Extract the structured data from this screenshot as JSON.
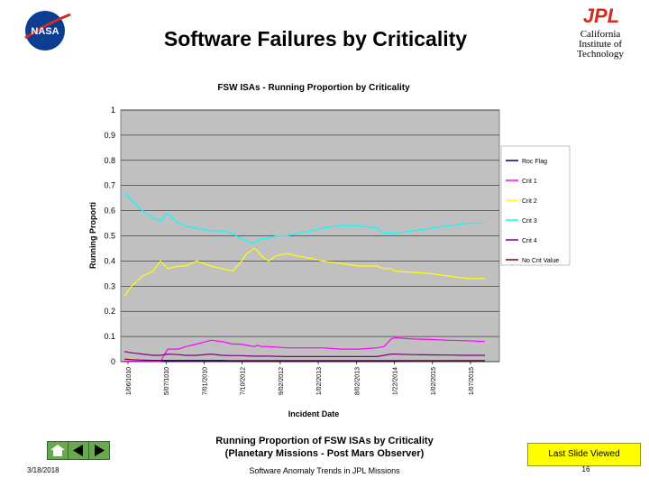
{
  "header": {
    "title": "Software Failures by Criticality",
    "org_line1": "California",
    "org_line2": "Institute of",
    "org_line3": "Technology",
    "jpl_logo_text": "JPL",
    "nasa_logo_text": "NASA"
  },
  "colors": {
    "plot_bg": "#c0c0c0",
    "roc_flag": "#000080",
    "crit1": "#ff00ff",
    "crit2": "#ffff00",
    "crit3": "#00ffff",
    "crit4": "#800080",
    "no_crit": "#800000",
    "nav_green": "#6aa84f",
    "last_slide_bg": "#ffff00"
  },
  "chart_data": {
    "type": "line",
    "title": "FSW ISAs - Running Proportion by Criticality",
    "xlabel": "Incident Date",
    "ylabel": "Running Proporti",
    "ylim": [
      0,
      1
    ],
    "yticks": [
      "0",
      "0.1",
      "0.2",
      "0.3",
      "0.4",
      "0.5",
      "0.6",
      "0.7",
      "0.8",
      "0.9",
      "1"
    ],
    "xticks": [
      "1/06/1010",
      "5/07/1010",
      "7/01/2010",
      "7/10/2012",
      "9/02/2012",
      "1/02/2013",
      "8/02/2013",
      "1/22/2014",
      "1/02/2015",
      "1/07/2015"
    ],
    "legend_position": "right",
    "legend": [
      "Roc Flag",
      "Crit 1",
      "Crit 2",
      "Crit 3",
      "Crit 4",
      "No Crit Value"
    ],
    "grid": true,
    "x": [
      0,
      0.02,
      0.05,
      0.08,
      0.1,
      0.12,
      0.15,
      0.17,
      0.2,
      0.24,
      0.27,
      0.3,
      0.32,
      0.34,
      0.36,
      0.37,
      0.38,
      0.4,
      0.42,
      0.45,
      0.48,
      0.52,
      0.55,
      0.6,
      0.65,
      0.7,
      0.72,
      0.74,
      0.75,
      0.8,
      0.85,
      0.9,
      0.95,
      1.0
    ],
    "series": [
      {
        "name": "Roc Flag",
        "color_key": "roc_flag",
        "values": [
          0.001,
          0.001,
          0.001,
          0.001,
          0.001,
          0.001,
          0.001,
          0.001,
          0.001,
          0.001,
          0.001,
          0.001,
          0.001,
          0.001,
          0.001,
          0.001,
          0.001,
          0.001,
          0.001,
          0.001,
          0.001,
          0.001,
          0.001,
          0.001,
          0.001,
          0.001,
          0.001,
          0.001,
          0.001,
          0.003,
          0.003,
          0.003,
          0.003,
          0.003
        ]
      },
      {
        "name": "Crit 1",
        "color_key": "crit1",
        "values": [
          0.0,
          0.0,
          0.0,
          0.0,
          0.0,
          0.05,
          0.05,
          0.06,
          0.07,
          0.085,
          0.08,
          0.07,
          0.07,
          0.065,
          0.06,
          0.065,
          0.06,
          0.06,
          0.058,
          0.055,
          0.055,
          0.055,
          0.055,
          0.05,
          0.05,
          0.055,
          0.06,
          0.09,
          0.095,
          0.09,
          0.088,
          0.085,
          0.083,
          0.08
        ]
      },
      {
        "name": "Crit 2",
        "color_key": "crit2",
        "values": [
          0.26,
          0.3,
          0.34,
          0.36,
          0.4,
          0.37,
          0.38,
          0.38,
          0.4,
          0.38,
          0.37,
          0.36,
          0.39,
          0.43,
          0.45,
          0.44,
          0.42,
          0.4,
          0.42,
          0.43,
          0.42,
          0.41,
          0.4,
          0.39,
          0.38,
          0.38,
          0.37,
          0.37,
          0.36,
          0.355,
          0.35,
          0.34,
          0.33,
          0.33
        ]
      },
      {
        "name": "Crit 3",
        "color_key": "crit3",
        "values": [
          0.67,
          0.64,
          0.6,
          0.57,
          0.56,
          0.59,
          0.55,
          0.54,
          0.53,
          0.52,
          0.52,
          0.51,
          0.49,
          0.48,
          0.47,
          0.48,
          0.49,
          0.49,
          0.5,
          0.5,
          0.51,
          0.52,
          0.53,
          0.54,
          0.54,
          0.53,
          0.51,
          0.51,
          0.51,
          0.52,
          0.53,
          0.54,
          0.55,
          0.55
        ]
      },
      {
        "name": "Crit 4",
        "color_key": "crit4",
        "values": [
          0.04,
          0.035,
          0.03,
          0.025,
          0.025,
          0.03,
          0.028,
          0.025,
          0.025,
          0.03,
          0.025,
          0.024,
          0.024,
          0.023,
          0.022,
          0.022,
          0.022,
          0.022,
          0.021,
          0.02,
          0.02,
          0.02,
          0.02,
          0.02,
          0.02,
          0.02,
          0.025,
          0.03,
          0.03,
          0.028,
          0.027,
          0.026,
          0.025,
          0.025
        ]
      },
      {
        "name": "No Crit Value",
        "color_key": "no_crit",
        "values": [
          0.01,
          0.008,
          0.006,
          0.005,
          0.005,
          0.005,
          0.005,
          0.005,
          0.005,
          0.005,
          0.005,
          0.004,
          0.004,
          0.004,
          0.004,
          0.004,
          0.004,
          0.004,
          0.004,
          0.004,
          0.004,
          0.004,
          0.004,
          0.004,
          0.004,
          0.004,
          0.004,
          0.004,
          0.004,
          0.004,
          0.004,
          0.004,
          0.004,
          0.004
        ]
      }
    ]
  },
  "caption": {
    "line1": "Running Proportion of FSW ISAs by Criticality",
    "line2": "(Planetary Missions - Post Mars Observer)"
  },
  "footer": {
    "date": "3/18/2018",
    "center": "Software Anomaly Trends in JPL Missions",
    "last_slide": "Last Slide Viewed",
    "page": "16"
  }
}
